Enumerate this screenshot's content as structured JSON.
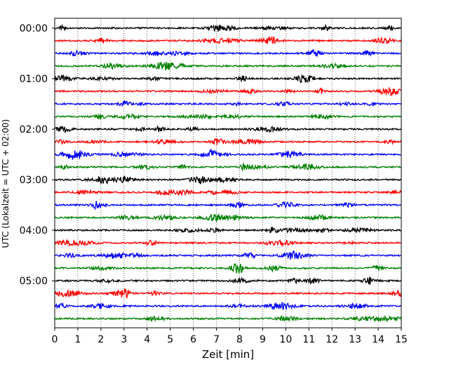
{
  "chart_data": {
    "type": "line",
    "title": "",
    "xlabel": "Zeit  [min]",
    "ylabel": "UTC (Lokalzeit = UTC + 02:00)",
    "xlim": [
      0,
      15
    ],
    "x_ticks": [
      0,
      1,
      2,
      3,
      4,
      5,
      6,
      7,
      8,
      9,
      10,
      11,
      12,
      13,
      14,
      15
    ],
    "y_tick_labels": [
      "00:00",
      "01:00",
      "02:00",
      "03:00",
      "04:00",
      "05:00"
    ],
    "y_tick_rows": [
      0,
      4,
      8,
      12,
      16,
      20
    ],
    "rows": 24,
    "row_minutes": 15,
    "trace_colors": [
      "#000000",
      "#ff0000",
      "#0000ff",
      "#008000"
    ],
    "grid": "vertical-dotted",
    "legend": "none"
  }
}
